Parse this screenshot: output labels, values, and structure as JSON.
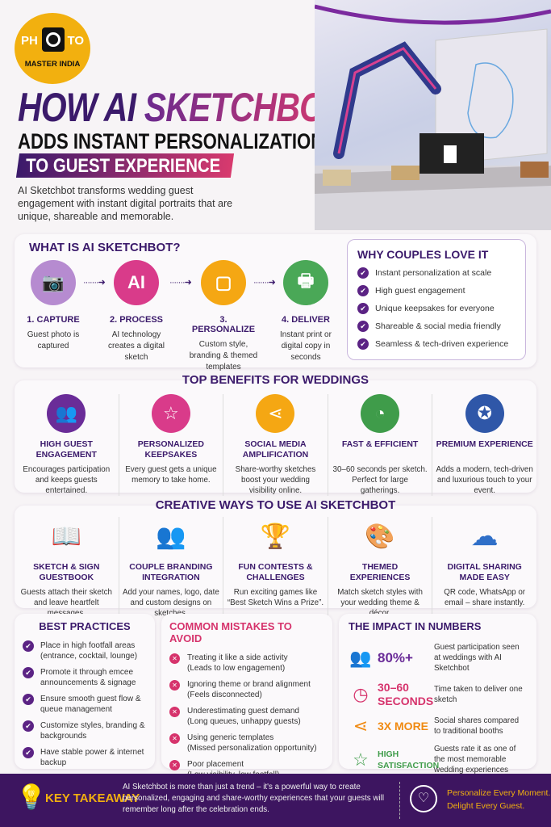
{
  "logo": {
    "left": "PH",
    "right": "TO",
    "name": "MASTER INDIA"
  },
  "title": {
    "line1a": "HOW AI",
    "line1b": "SKETCHBOT",
    "line2": "ADDS INSTANT PERSONALIZATION",
    "line3": "TO GUEST EXPERIENCE"
  },
  "description": "AI Sketchbot transforms wedding guest engagement with instant digital portraits that are unique, shareable and memorable.",
  "what": {
    "heading": "WHAT IS AI SKETCHBOT?",
    "steps": [
      {
        "icon": "camera-icon",
        "color": "#b68bd0",
        "title": "1. CAPTURE",
        "text": "Guest photo is captured"
      },
      {
        "icon": "ai-chip-icon",
        "color": "#d93b8a",
        "title": "2. PROCESS",
        "text": "AI technology creates a digital sketch"
      },
      {
        "icon": "portrait-icon",
        "color": "#f5a713",
        "title": "3. PERSONALIZE",
        "text": "Custom style, branding & themed templates"
      },
      {
        "icon": "printer-icon",
        "color": "#4aa857",
        "title": "4. DELIVER",
        "text": "Instant print or digital copy in seconds"
      }
    ]
  },
  "why": {
    "heading": "WHY COUPLES LOVE IT",
    "items": [
      "Instant personalization at scale",
      "High guest engagement",
      "Unique keepsakes for everyone",
      "Shareable & social media friendly",
      "Seamless & tech-driven experience"
    ]
  },
  "benefits": {
    "heading": "TOP BENEFITS FOR WEDDINGS",
    "items": [
      {
        "icon": "group-icon",
        "color": "#6a2c98",
        "title": "HIGH GUEST ENGAGEMENT",
        "text": "Encourages participation and keeps guests entertained."
      },
      {
        "icon": "portrait-star-icon",
        "color": "#d93b8a",
        "title": "PERSONALIZED KEEPSAKES",
        "text": "Every guest gets a unique memory to take home."
      },
      {
        "icon": "share-icon",
        "color": "#f5a713",
        "title": "SOCIAL MEDIA AMPLIFICATION",
        "text": "Share-worthy sketches boost your wedding visibility online."
      },
      {
        "icon": "speedometer-icon",
        "color": "#3f9c4a",
        "title": "FAST & EFFICIENT",
        "text": "30–60 seconds per sketch. Perfect for large gatherings."
      },
      {
        "icon": "award-icon",
        "color": "#2f57a8",
        "title": "PREMIUM EXPERIENCE",
        "text": "Adds a modern, tech-driven and luxurious touch to your event."
      }
    ]
  },
  "creative": {
    "heading": "CREATIVE WAYS TO USE AI SKETCHBOT",
    "items": [
      {
        "icon": "book-icon",
        "glyph": "📖",
        "title": "SKETCH & SIGN GUESTBOOK",
        "text": "Guests attach their sketch and leave heartfelt messages."
      },
      {
        "icon": "couple-icon",
        "glyph": "👥",
        "title": "COUPLE BRANDING INTEGRATION",
        "text": "Add your names, logo, date and custom designs on sketches."
      },
      {
        "icon": "trophy-icon",
        "glyph": "🏆",
        "title": "FUN CONTESTS & CHALLENGES",
        "text": "Run exciting games like “Best Sketch Wins a Prize”."
      },
      {
        "icon": "palette-icon",
        "glyph": "🎨",
        "title": "THEMED EXPERIENCES",
        "text": "Match sketch styles with your wedding theme & décor."
      },
      {
        "icon": "cloud-download-icon",
        "glyph": "☁",
        "title": "DIGITAL SHARING MADE EASY",
        "text": "QR code, WhatsApp or email – share instantly."
      }
    ]
  },
  "best": {
    "heading": "BEST PRACTICES",
    "items": [
      "Place in high footfall areas (entrance, cocktail, lounge)",
      "Promote it through emcee announcements & signage",
      "Ensure smooth guest flow & queue management",
      "Customize styles, branding & backgrounds",
      "Have stable power & internet backup"
    ]
  },
  "mistakes": {
    "heading": "COMMON MISTAKES TO AVOID",
    "items": [
      {
        "main": "Treating it like a side activity",
        "sub": "(Leads to low engagement)"
      },
      {
        "main": "Ignoring theme or brand alignment",
        "sub": "(Feels disconnected)"
      },
      {
        "main": "Underestimating guest demand",
        "sub": "(Long queues, unhappy guests)"
      },
      {
        "main": "Using generic templates",
        "sub": "(Missed personalization opportunity)"
      },
      {
        "main": "Poor placement",
        "sub": "(Low visibility, low footfall)"
      }
    ]
  },
  "impact": {
    "heading": "THE IMPACT IN NUMBERS",
    "items": [
      {
        "icon": "group-icon",
        "color": "#6a2c98",
        "value": "80%+",
        "text": "Guest participation seen at weddings with AI Sketchbot"
      },
      {
        "icon": "clock-icon",
        "color": "#d6336c",
        "value": "30–60 SECONDS",
        "text": "Time taken to deliver one sketch"
      },
      {
        "icon": "share-icon",
        "color": "#f08a12",
        "value": "3X MORE",
        "text": "Social shares compared to traditional booths"
      },
      {
        "icon": "star-icon",
        "color": "#3f9c4a",
        "value": "HIGH SATISFACTION",
        "text": "Guests rate it as one of the most memorable wedding experiences"
      }
    ]
  },
  "footer": {
    "label": "KEY TAKEAWAY",
    "text": "AI Sketchbot is more than just a trend – it's a powerful way to create personalized, engaging and share-worthy experiences that your guests will remember long after the celebration ends.",
    "slogan1": "Personalize Every Moment.",
    "slogan2": "Delight Every Guest."
  },
  "colors": {
    "purple": "#3b1a6b",
    "pink": "#d83a6e",
    "yellow": "#f2b00f",
    "footer": "#3d1560"
  }
}
